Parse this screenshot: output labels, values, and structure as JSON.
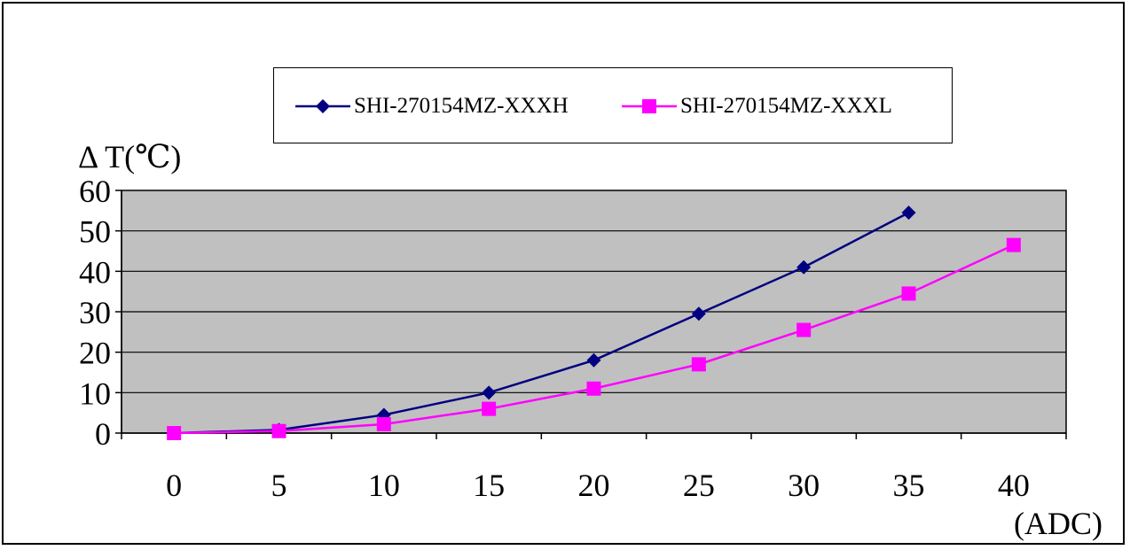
{
  "chart_data": {
    "type": "line",
    "title": "",
    "ylabel": "Δ T(℃)",
    "xlabel": "(ADC)",
    "x": [
      0,
      5,
      10,
      15,
      20,
      25,
      30,
      35,
      40
    ],
    "xlim": [
      0,
      40
    ],
    "ylim": [
      0,
      60
    ],
    "yticks": [
      0,
      10,
      20,
      30,
      40,
      50,
      60
    ],
    "grid": true,
    "plot_background": "#c0c0c0",
    "legend_position": "top",
    "series": [
      {
        "name": "SHI-270154MZ-XXXH",
        "color": "#000080",
        "marker": "diamond",
        "points": [
          [
            0,
            0
          ],
          [
            5,
            0.8
          ],
          [
            10,
            4.5
          ],
          [
            15,
            10
          ],
          [
            20,
            18
          ],
          [
            25,
            29.5
          ],
          [
            30,
            41
          ],
          [
            35,
            54.5
          ]
        ]
      },
      {
        "name": "SHI-270154MZ-XXXL",
        "color": "#ff00ff",
        "marker": "square",
        "points": [
          [
            0,
            0
          ],
          [
            5,
            0.5
          ],
          [
            10,
            2.2
          ],
          [
            15,
            6
          ],
          [
            20,
            11
          ],
          [
            25,
            17
          ],
          [
            30,
            25.5
          ],
          [
            35,
            34.5
          ],
          [
            40,
            46.5
          ]
        ]
      }
    ]
  }
}
